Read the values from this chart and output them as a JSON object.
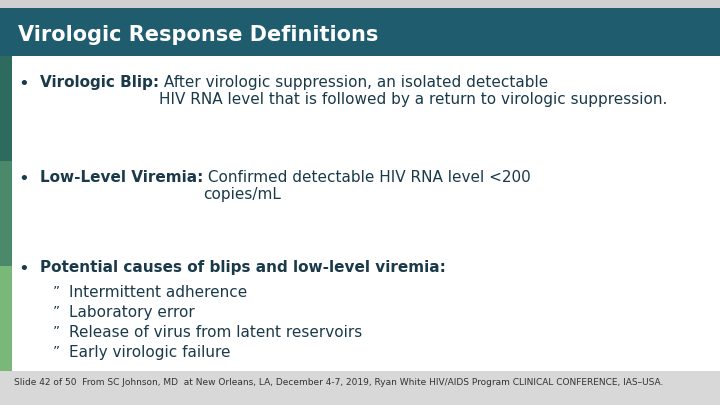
{
  "title": "Virologic Response Definitions",
  "title_bg_color": "#1e5c6e",
  "title_text_color": "#ffffff",
  "slide_bg_color": "#e8e8e8",
  "content_bg_color": "#ffffff",
  "left_bar_color1": "#2d6b5e",
  "left_bar_color2": "#4a8a6a",
  "left_bar_color3": "#7ab87a",
  "text_color": "#1a3a4a",
  "bullet1_bold": "Virologic Blip:",
  "bullet1_rest": " After virologic suppression, an isolated detectable\nHIV RNA level that is followed by a return to virologic suppression.",
  "bullet2_bold": "Low-Level Viremia:",
  "bullet2_rest": " Confirmed detectable HIV RNA level <200\ncopies/mL",
  "bullet3_bold": "Potential causes of blips and low-level viremia:",
  "subbullets": [
    "Intermittent adherence",
    "Laboratory error",
    "Release of virus from latent reservoirs",
    "Early virologic failure"
  ],
  "footer": "Slide 42 of 50  From SC Johnson, MD  at New Orleans, LA, December 4-7, 2019, Ryan White HIV/AIDS Program CLINICAL CONFERENCE, IAS–USA.",
  "title_fontsize": 15,
  "bullet_fontsize": 11,
  "subbullet_fontsize": 11,
  "footer_fontsize": 6.5
}
